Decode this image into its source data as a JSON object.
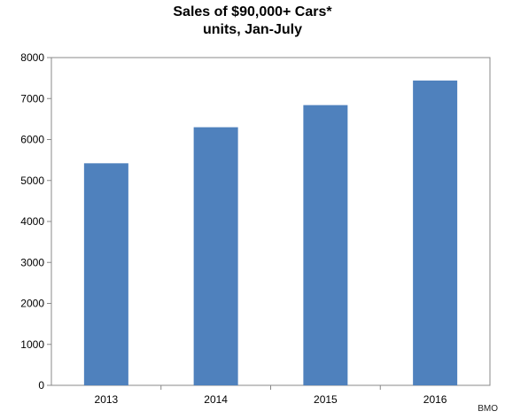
{
  "chart_data": {
    "type": "bar",
    "title": "Sales of $90,000+ Cars*",
    "subtitle": "units, Jan-July",
    "categories": [
      "2013",
      "2014",
      "2015",
      "2016"
    ],
    "values": [
      5420,
      6300,
      6840,
      7440
    ],
    "xlabel": "",
    "ylabel": "",
    "ylim": [
      0,
      8000
    ],
    "yticks": [
      "0",
      "1000",
      "2000",
      "3000",
      "4000",
      "5000",
      "6000",
      "7000",
      "8000"
    ],
    "grid": false,
    "legend": "none",
    "bar_color": "#4f81bd"
  },
  "source": "BMO"
}
